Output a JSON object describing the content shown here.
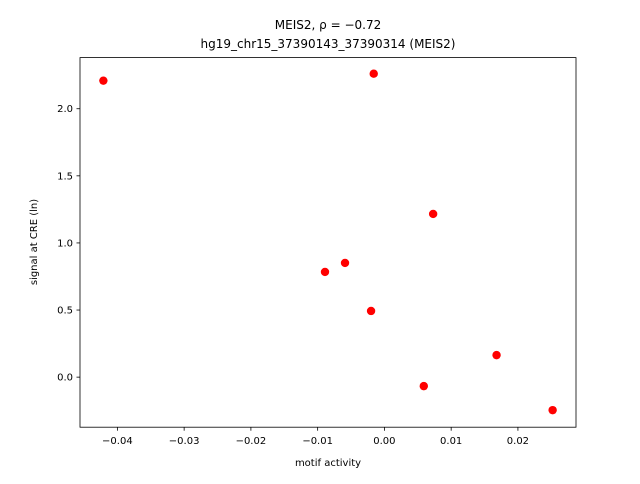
{
  "chart_data": {
    "type": "scatter",
    "title": "MEIS2, ρ = −0.72",
    "subtitle": "hg19_chr15_37390143_37390314 (MEIS2)",
    "xlabel": "motif activity",
    "ylabel": "signal at CRE (ln)",
    "color": "#ff0000",
    "x": [
      -0.0421,
      -0.0016,
      0.0073,
      -0.0059,
      -0.0089,
      -0.002,
      0.0168,
      0.0059,
      0.0252
    ],
    "values": [
      2.209,
      2.261,
      1.216,
      0.851,
      0.784,
      0.493,
      0.164,
      -0.067,
      -0.246
    ],
    "xlim": [
      -0.0456,
      0.0287
    ],
    "ylim": [
      -0.373,
      2.381
    ],
    "xticks": [
      {
        "value": -0.04,
        "label": "−0.04"
      },
      {
        "value": -0.03,
        "label": "−0.03"
      },
      {
        "value": -0.02,
        "label": "−0.02"
      },
      {
        "value": -0.01,
        "label": "−0.01"
      },
      {
        "value": 0,
        "label": "0.00"
      },
      0.01,
      0.02
    ],
    "yticks": [
      {
        "value": 0,
        "label": "0.0"
      },
      0.5,
      {
        "value": 1,
        "label": "1.0"
      },
      1.5,
      {
        "value": 2,
        "label": "2.0"
      }
    ],
    "grid": false
  }
}
